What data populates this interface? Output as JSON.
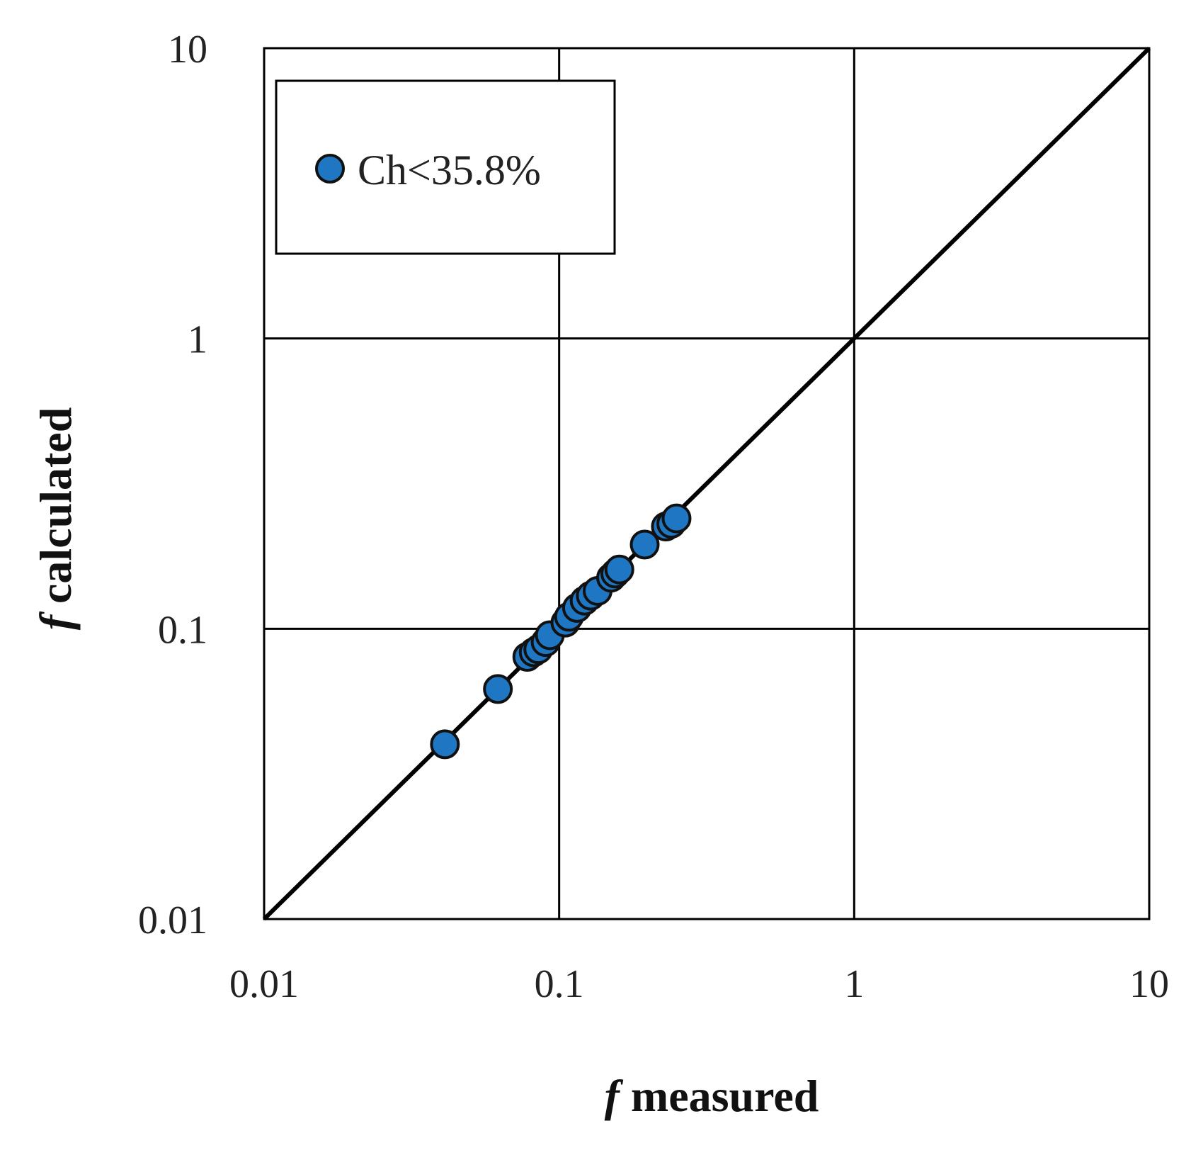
{
  "chart_data": {
    "type": "scatter",
    "x_scale": "log",
    "y_scale": "log",
    "xlim": [
      0.01,
      10
    ],
    "ylim": [
      0.01,
      10
    ],
    "grid": true,
    "legend_position": "top-left",
    "x_ticks": [
      "0.01",
      "0.1",
      "1",
      "10"
    ],
    "y_ticks": [
      "0.01",
      "0.1",
      "1",
      "10"
    ],
    "x_tick_values": [
      0.01,
      0.1,
      1,
      10
    ],
    "y_tick_values": [
      0.01,
      0.1,
      1,
      10
    ],
    "xlabel": {
      "symbol": "f",
      "text": " measured"
    },
    "ylabel": {
      "symbol": "f",
      "text": " calculated"
    },
    "reference_line": {
      "type": "y = x",
      "color": "#000000"
    },
    "series": [
      {
        "name": "Ch<35.8%",
        "color": "#1f77c4",
        "edge_color": "#111111",
        "points": [
          {
            "x": 0.041,
            "y": 0.04
          },
          {
            "x": 0.062,
            "y": 0.062
          },
          {
            "x": 0.078,
            "y": 0.08
          },
          {
            "x": 0.082,
            "y": 0.083
          },
          {
            "x": 0.085,
            "y": 0.085
          },
          {
            "x": 0.09,
            "y": 0.09
          },
          {
            "x": 0.093,
            "y": 0.095
          },
          {
            "x": 0.105,
            "y": 0.105
          },
          {
            "x": 0.108,
            "y": 0.11
          },
          {
            "x": 0.115,
            "y": 0.118
          },
          {
            "x": 0.122,
            "y": 0.125
          },
          {
            "x": 0.128,
            "y": 0.13
          },
          {
            "x": 0.135,
            "y": 0.135
          },
          {
            "x": 0.15,
            "y": 0.15
          },
          {
            "x": 0.155,
            "y": 0.155
          },
          {
            "x": 0.16,
            "y": 0.16
          },
          {
            "x": 0.195,
            "y": 0.195
          },
          {
            "x": 0.23,
            "y": 0.225
          },
          {
            "x": 0.24,
            "y": 0.23
          },
          {
            "x": 0.25,
            "y": 0.24
          }
        ]
      }
    ]
  }
}
